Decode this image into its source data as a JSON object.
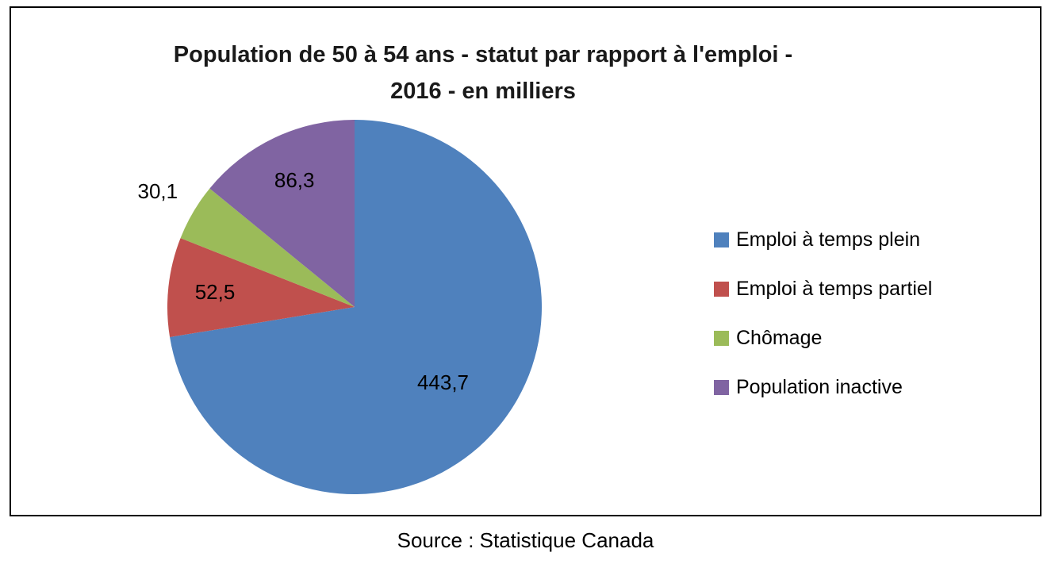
{
  "title_lines": [
    "Population de 50 à 54 ans - statut par rapport à l'emploi -",
    "2016 - en milliers"
  ],
  "source": "Source : Statistique Canada",
  "chart_data": {
    "type": "pie",
    "title": "Population de 50 à 54 ans - statut par rapport à l'emploi - 2016 - en milliers",
    "categories": [
      "Emploi à temps plein",
      "Emploi à temps partiel",
      "Chômage",
      "Population inactive"
    ],
    "values": [
      443.7,
      52.5,
      30.1,
      86.3
    ],
    "labels_display": [
      "443,7",
      "52,5",
      "30,1",
      "86,3"
    ],
    "colors": [
      "#4F81BD",
      "#C0504D",
      "#9BBB59",
      "#8064A2"
    ],
    "total": 612.6,
    "unit": "milliers",
    "start_angle_deg": 0,
    "direction": "clockwise",
    "legend_position": "right",
    "grid": false
  }
}
